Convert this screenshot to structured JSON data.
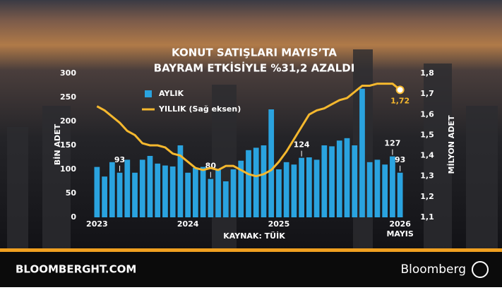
{
  "chart_data": {
    "type": "bar-line",
    "title": [
      "KONUT SATIŞLARI MAYIS’TA",
      "BAYRAM ETKİSİYLE %31,2 AZALDI"
    ],
    "source": "KAYNAK: TÜİK",
    "footer_site": "BLOOMBERGHT.COM",
    "footer_brand": "Bloomberg",
    "y_label": "BİN ADET",
    "y2_label": "MİLYON ADET",
    "categories": [
      "2023",
      null,
      null,
      null,
      null,
      null,
      null,
      null,
      null,
      null,
      null,
      null,
      "2024",
      null,
      null,
      null,
      null,
      null,
      null,
      null,
      null,
      null,
      null,
      null,
      "2025",
      null,
      null,
      null,
      null,
      null,
      null,
      null,
      null,
      null,
      null,
      null,
      null,
      null,
      null,
      null,
      "2026"
    ],
    "last_month": "MAYIS",
    "ylim": [
      0,
      300
    ],
    "yticks": [
      0,
      50,
      100,
      150,
      200,
      250,
      300
    ],
    "y2lim": [
      1.1,
      1.8
    ],
    "y2ticks": [
      {
        "value": 1.1,
        "label": "1,1"
      },
      {
        "value": 1.2,
        "label": "1,2"
      },
      {
        "value": 1.3,
        "label": "1,3"
      },
      {
        "value": 1.4,
        "label": "1,4"
      },
      {
        "value": 1.5,
        "label": "1,5"
      },
      {
        "value": 1.6,
        "label": "1,6"
      },
      {
        "value": 1.7,
        "label": "1,7"
      },
      {
        "value": 1.8,
        "label": "1,8"
      }
    ],
    "legend": "top-left",
    "series": [
      {
        "name": "AYLIK",
        "type": "bar",
        "color": "#2aa3df",
        "values": [
          105,
          85,
          115,
          93,
          120,
          93,
          120,
          128,
          112,
          108,
          106,
          150,
          93,
          103,
          105,
          80,
          100,
          75,
          100,
          118,
          140,
          145,
          150,
          225,
          100,
          115,
          110,
          124,
          125,
          120,
          150,
          148,
          160,
          165,
          150,
          268,
          115,
          120,
          110,
          127,
          93
        ],
        "value_labels": [
          null,
          null,
          null,
          "93",
          null,
          null,
          null,
          null,
          null,
          null,
          null,
          null,
          null,
          null,
          null,
          "80",
          null,
          null,
          null,
          null,
          null,
          null,
          null,
          null,
          null,
          null,
          null,
          "124",
          null,
          null,
          null,
          null,
          null,
          null,
          null,
          null,
          null,
          null,
          null,
          "127",
          "93"
        ]
      },
      {
        "name": "YILLIK (Sağ eksen)",
        "type": "line",
        "axis": "y2",
        "color": "#f5b82e",
        "values": [
          1.64,
          1.62,
          1.59,
          1.56,
          1.52,
          1.5,
          1.46,
          1.45,
          1.45,
          1.44,
          1.41,
          1.4,
          1.37,
          1.34,
          1.33,
          1.34,
          1.33,
          1.35,
          1.35,
          1.33,
          1.31,
          1.3,
          1.31,
          1.33,
          1.37,
          1.42,
          1.48,
          1.54,
          1.6,
          1.62,
          1.63,
          1.65,
          1.67,
          1.68,
          1.71,
          1.74,
          1.74,
          1.75,
          1.75,
          1.75,
          1.72
        ],
        "value_labels": [
          null,
          null,
          null,
          null,
          null,
          null,
          null,
          null,
          null,
          null,
          null,
          null,
          null,
          null,
          null,
          null,
          null,
          null,
          null,
          null,
          null,
          null,
          null,
          null,
          null,
          null,
          null,
          null,
          null,
          null,
          null,
          null,
          null,
          null,
          null,
          null,
          null,
          null,
          null,
          null,
          "1,72"
        ]
      }
    ]
  }
}
